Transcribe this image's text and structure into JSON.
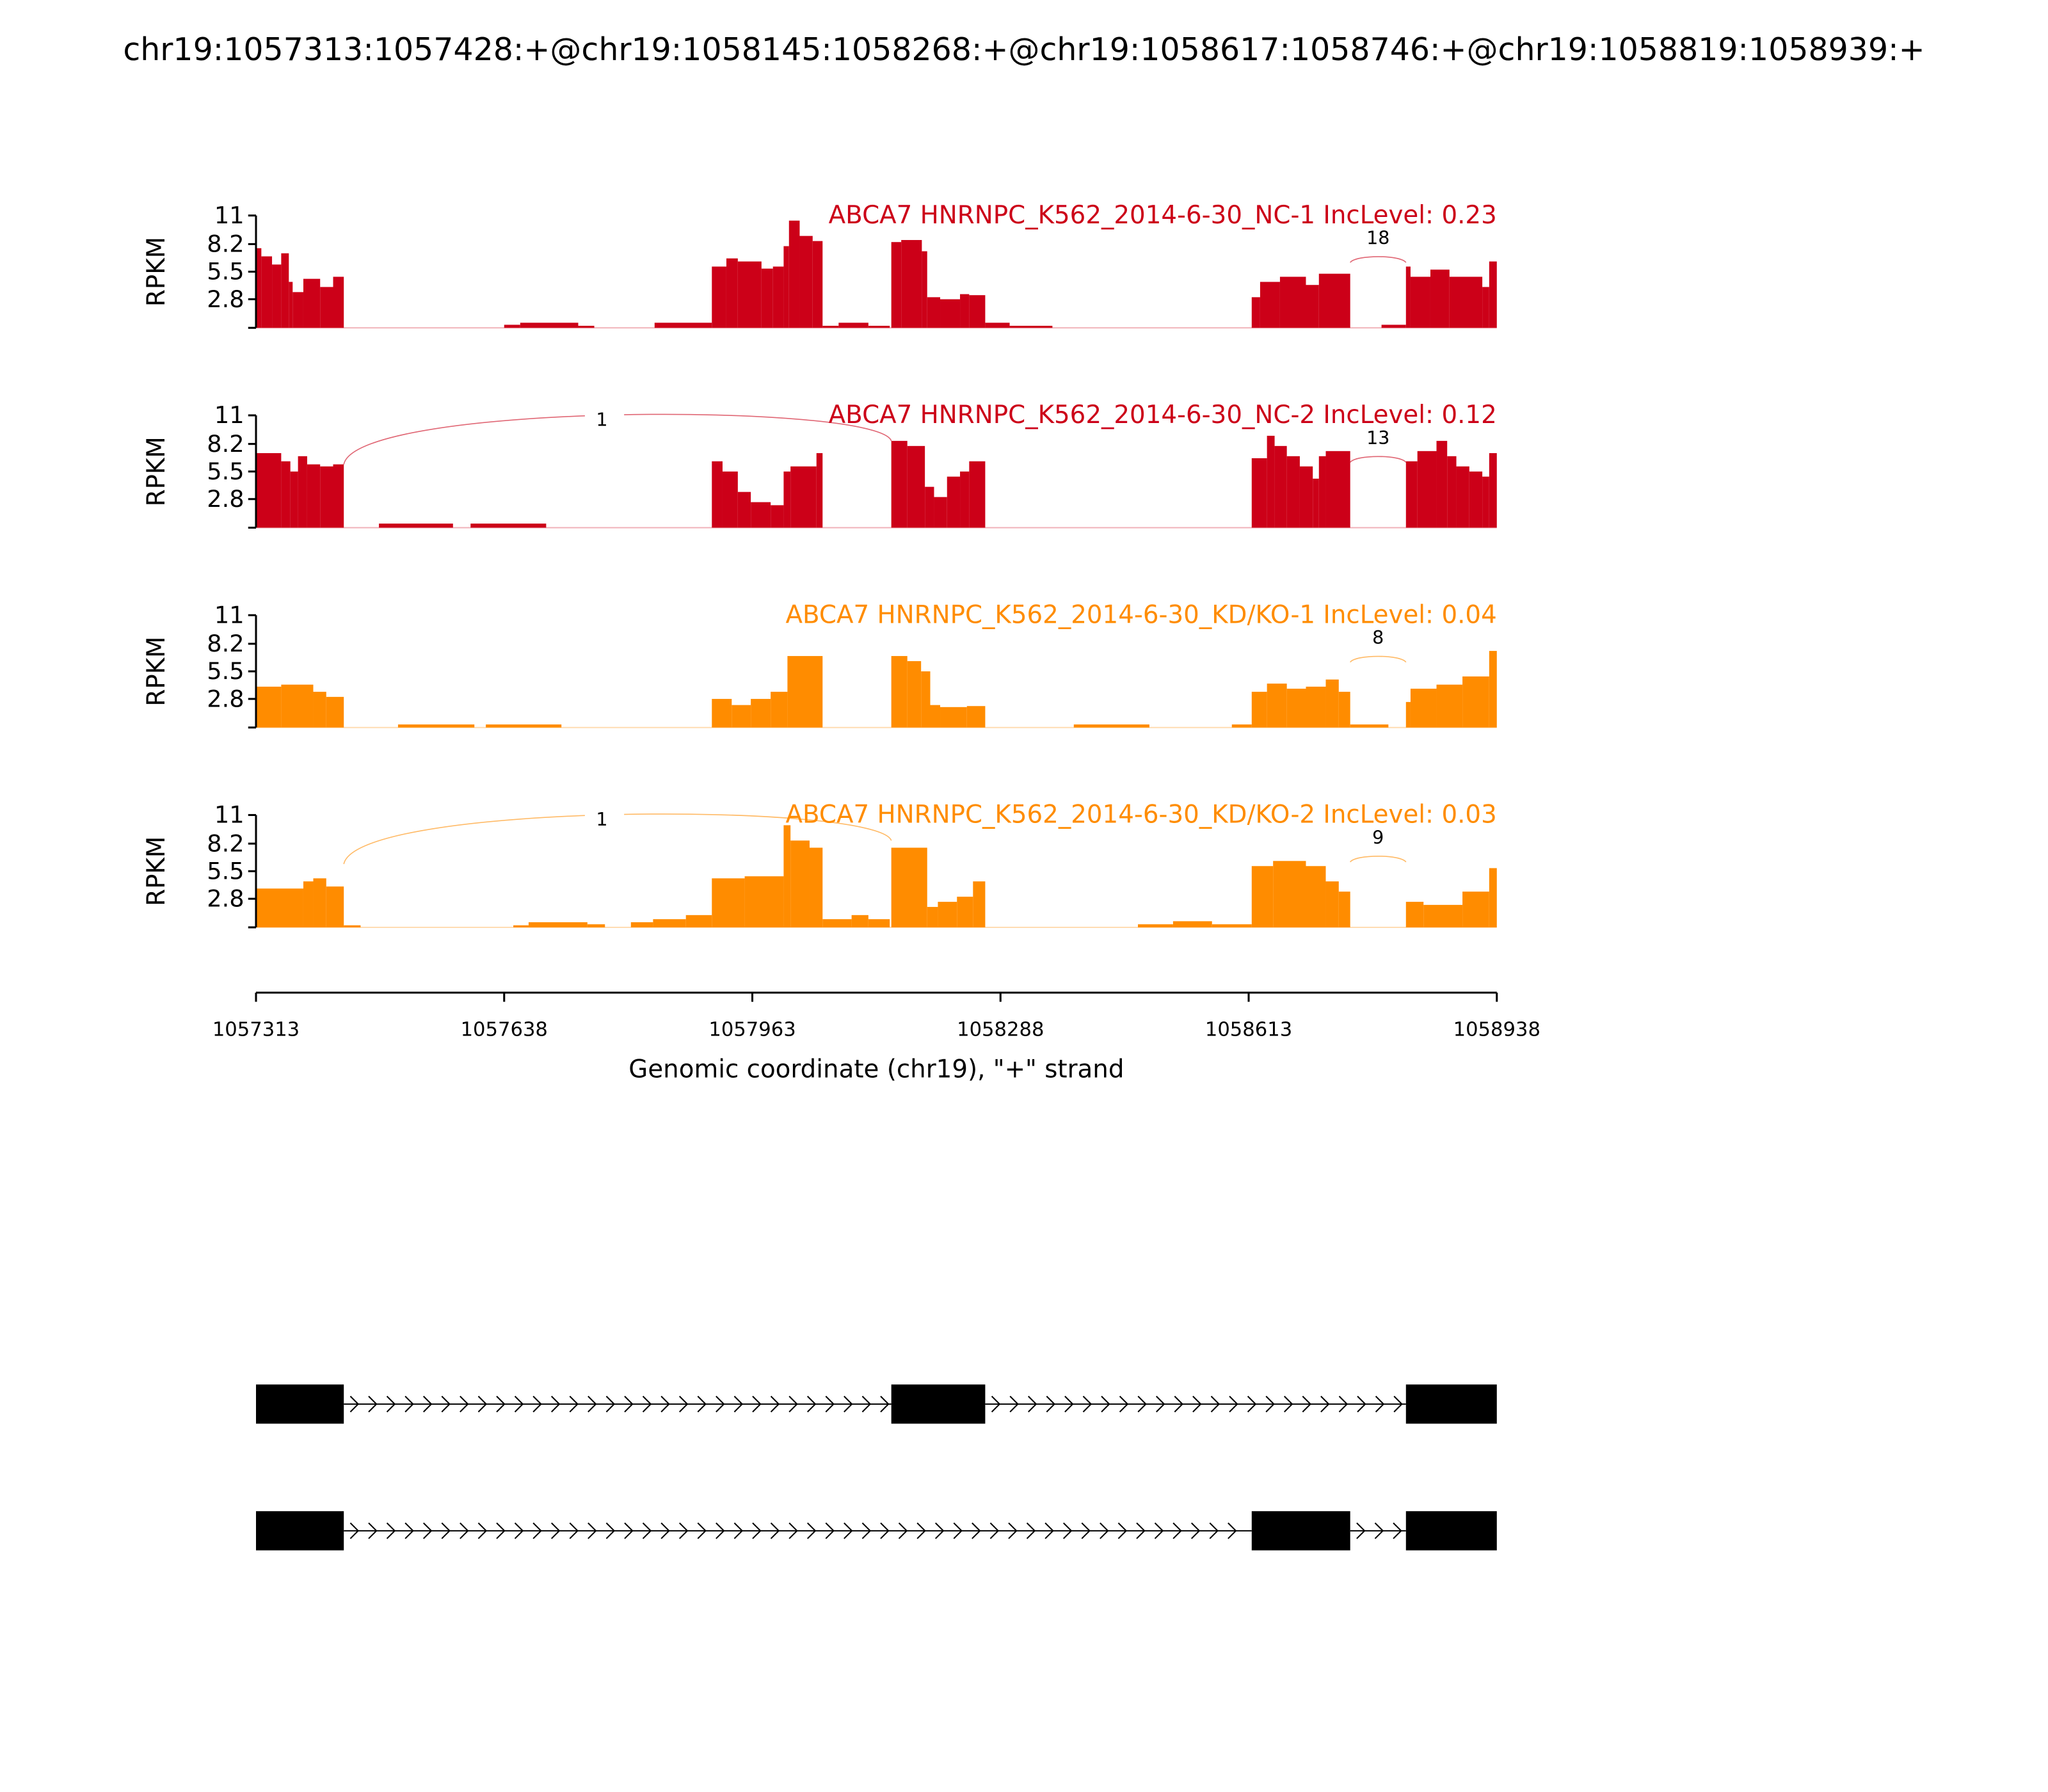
{
  "chart_data": {
    "type": "area",
    "title": "chr19:1057313:1057428:+@chr19:1058145:1058268:+@chr19:1058617:1058746:+@chr19:1058819:1058939:+",
    "xlabel": "Genomic coordinate (chr19), \"+\" strand",
    "ylabel": "RPKM",
    "xlim": [
      1057313,
      1058938
    ],
    "ylim": [
      0,
      11
    ],
    "yticks": [
      "2.8",
      "5.5",
      "8.2",
      "11"
    ],
    "xticks": [
      "1057313",
      "1057638",
      "1057963",
      "1058288",
      "1058613",
      "1058938"
    ],
    "coverage_offset_origin": 1057313,
    "colors": {
      "NC": "#cc0018",
      "KD": "#ff8c00"
    },
    "tracks": [
      {
        "label": "ABCA7 HNRNPC_K562_2014-6-30_NC-1 IncLevel: 0.23",
        "color": "#cc0018",
        "coverage": [
          [
            0,
            7,
            7.8
          ],
          [
            7,
            21,
            7
          ],
          [
            21,
            33,
            6.2
          ],
          [
            33,
            43,
            7.3
          ],
          [
            43,
            48,
            4.5
          ],
          [
            48,
            62,
            3.5
          ],
          [
            62,
            84,
            4.8
          ],
          [
            84,
            101,
            4
          ],
          [
            101,
            115,
            5
          ],
          [
            325,
            346,
            0.3
          ],
          [
            346,
            422,
            0.5
          ],
          [
            422,
            443,
            0.2
          ],
          [
            522,
            597,
            0.5
          ],
          [
            597,
            616,
            6
          ],
          [
            616,
            631,
            6.8
          ],
          [
            631,
            662,
            6.5
          ],
          [
            662,
            677,
            5.8
          ],
          [
            677,
            691,
            6
          ],
          [
            691,
            698,
            8
          ],
          [
            698,
            712,
            10.5
          ],
          [
            712,
            729,
            9
          ],
          [
            729,
            742,
            8.5
          ],
          [
            742,
            763,
            0.2
          ],
          [
            763,
            802,
            0.5
          ],
          [
            802,
            830,
            0.2
          ],
          [
            832,
            845,
            8.4
          ],
          [
            845,
            872,
            8.6
          ],
          [
            872,
            879,
            7.5
          ],
          [
            879,
            896,
            3
          ],
          [
            896,
            922,
            2.8
          ],
          [
            922,
            934,
            3.3
          ],
          [
            934,
            955,
            3.2
          ],
          [
            955,
            987,
            0.5
          ],
          [
            987,
            1043,
            0.2
          ],
          [
            1304,
            1315,
            3
          ],
          [
            1315,
            1341,
            4.5
          ],
          [
            1341,
            1375,
            5
          ],
          [
            1375,
            1392,
            4.2
          ],
          [
            1392,
            1433,
            5.3
          ],
          [
            1474,
            1506,
            0.3
          ],
          [
            1506,
            1512,
            6
          ],
          [
            1512,
            1538,
            5
          ],
          [
            1538,
            1563,
            5.7
          ],
          [
            1563,
            1606,
            5
          ],
          [
            1606,
            1615,
            4
          ],
          [
            1615,
            1625,
            6.5
          ]
        ],
        "junctions": [
          {
            "start": 1058746,
            "end": 1058819,
            "count": "18"
          }
        ]
      },
      {
        "label": "ABCA7 HNRNPC_K562_2014-6-30_NC-2 IncLevel: 0.12",
        "color": "#cc0018",
        "coverage": [
          [
            0,
            33,
            7.3
          ],
          [
            33,
            45,
            6.5
          ],
          [
            45,
            55,
            5.5
          ],
          [
            55,
            67,
            7
          ],
          [
            67,
            84,
            6.2
          ],
          [
            84,
            101,
            6
          ],
          [
            101,
            115,
            6.2
          ],
          [
            161,
            258,
            0.4
          ],
          [
            281,
            380,
            0.4
          ],
          [
            597,
            611,
            6.5
          ],
          [
            611,
            631,
            5.5
          ],
          [
            631,
            648,
            3.5
          ],
          [
            648,
            674,
            2.5
          ],
          [
            674,
            691,
            2.2
          ],
          [
            691,
            700,
            5.5
          ],
          [
            700,
            734,
            6
          ],
          [
            734,
            742,
            7.3
          ],
          [
            832,
            853,
            8.5
          ],
          [
            853,
            876,
            8
          ],
          [
            876,
            888,
            4
          ],
          [
            888,
            905,
            3
          ],
          [
            905,
            922,
            5
          ],
          [
            922,
            934,
            5.5
          ],
          [
            934,
            955,
            6.5
          ],
          [
            1304,
            1324,
            6.8
          ],
          [
            1324,
            1334,
            9
          ],
          [
            1334,
            1350,
            8
          ],
          [
            1350,
            1367,
            7
          ],
          [
            1367,
            1384,
            6
          ],
          [
            1384,
            1392,
            4.8
          ],
          [
            1392,
            1401,
            7
          ],
          [
            1401,
            1433,
            7.5
          ],
          [
            1506,
            1521,
            6.5
          ],
          [
            1521,
            1546,
            7.5
          ],
          [
            1546,
            1560,
            8.5
          ],
          [
            1560,
            1572,
            7
          ],
          [
            1572,
            1589,
            6
          ],
          [
            1589,
            1606,
            5.5
          ],
          [
            1606,
            1615,
            5
          ],
          [
            1615,
            1625,
            7.3
          ]
        ],
        "junctions": [
          {
            "start": 1057428,
            "end": 1058145,
            "count": "1"
          },
          {
            "start": 1058746,
            "end": 1058819,
            "count": "13"
          }
        ]
      },
      {
        "label": "ABCA7 HNRNPC_K562_2014-6-30_KD/KO-1 IncLevel: 0.04",
        "color": "#ff8c00",
        "coverage": [
          [
            0,
            33,
            4
          ],
          [
            33,
            75,
            4.2
          ],
          [
            75,
            92,
            3.5
          ],
          [
            92,
            115,
            3
          ],
          [
            186,
            286,
            0.3
          ],
          [
            301,
            400,
            0.3
          ],
          [
            597,
            623,
            2.8
          ],
          [
            623,
            648,
            2.2
          ],
          [
            648,
            674,
            2.8
          ],
          [
            674,
            696,
            3.5
          ],
          [
            696,
            742,
            7
          ],
          [
            832,
            853,
            7
          ],
          [
            853,
            871,
            6.5
          ],
          [
            871,
            883,
            5.5
          ],
          [
            883,
            896,
            2.2
          ],
          [
            896,
            931,
            2
          ],
          [
            931,
            955,
            2.1
          ],
          [
            1071,
            1170,
            0.3
          ],
          [
            1278,
            1304,
            0.3
          ],
          [
            1304,
            1324,
            3.5
          ],
          [
            1324,
            1350,
            4.3
          ],
          [
            1350,
            1375,
            3.8
          ],
          [
            1375,
            1401,
            4
          ],
          [
            1401,
            1418,
            4.7
          ],
          [
            1418,
            1433,
            3.5
          ],
          [
            1433,
            1483,
            0.3
          ],
          [
            1506,
            1512,
            2.5
          ],
          [
            1512,
            1546,
            3.8
          ],
          [
            1546,
            1580,
            4.2
          ],
          [
            1580,
            1615,
            5
          ],
          [
            1615,
            1625,
            7.5
          ]
        ],
        "junctions": [
          {
            "start": 1058746,
            "end": 1058819,
            "count": "8"
          }
        ]
      },
      {
        "label": "ABCA7 HNRNPC_K562_2014-6-30_KD/KO-2 IncLevel: 0.03",
        "color": "#ff8c00",
        "coverage": [
          [
            0,
            62,
            3.8
          ],
          [
            62,
            75,
            4.5
          ],
          [
            75,
            92,
            4.8
          ],
          [
            92,
            115,
            4
          ],
          [
            115,
            137,
            0.2
          ],
          [
            337,
            357,
            0.2
          ],
          [
            357,
            434,
            0.5
          ],
          [
            434,
            457,
            0.3
          ],
          [
            491,
            520,
            0.5
          ],
          [
            520,
            563,
            0.8
          ],
          [
            563,
            597,
            1.2
          ],
          [
            597,
            640,
            4.8
          ],
          [
            640,
            691,
            5
          ],
          [
            691,
            700,
            10
          ],
          [
            700,
            725,
            8.5
          ],
          [
            725,
            742,
            7.8
          ],
          [
            742,
            780,
            0.8
          ],
          [
            780,
            802,
            1.2
          ],
          [
            802,
            830,
            0.8
          ],
          [
            832,
            879,
            7.8
          ],
          [
            879,
            893,
            2
          ],
          [
            893,
            918,
            2.5
          ],
          [
            918,
            939,
            3
          ],
          [
            939,
            955,
            4.5
          ],
          [
            1155,
            1201,
            0.3
          ],
          [
            1201,
            1252,
            0.6
          ],
          [
            1252,
            1304,
            0.3
          ],
          [
            1304,
            1332,
            6
          ],
          [
            1332,
            1375,
            6.5
          ],
          [
            1375,
            1401,
            6
          ],
          [
            1401,
            1418,
            4.5
          ],
          [
            1418,
            1433,
            3.5
          ],
          [
            1506,
            1529,
            2.5
          ],
          [
            1529,
            1580,
            2.2
          ],
          [
            1580,
            1615,
            3.5
          ],
          [
            1615,
            1625,
            5.8
          ]
        ],
        "junctions": [
          {
            "start": 1057428,
            "end": 1058145,
            "count": "1"
          },
          {
            "start": 1058746,
            "end": 1058819,
            "count": "9"
          }
        ]
      }
    ],
    "isoforms": [
      {
        "exons": [
          [
            1057313,
            1057428
          ],
          [
            1058145,
            1058268
          ],
          [
            1058819,
            1058939
          ]
        ]
      },
      {
        "exons": [
          [
            1057313,
            1057428
          ],
          [
            1058617,
            1058746
          ],
          [
            1058819,
            1058939
          ]
        ]
      }
    ]
  }
}
